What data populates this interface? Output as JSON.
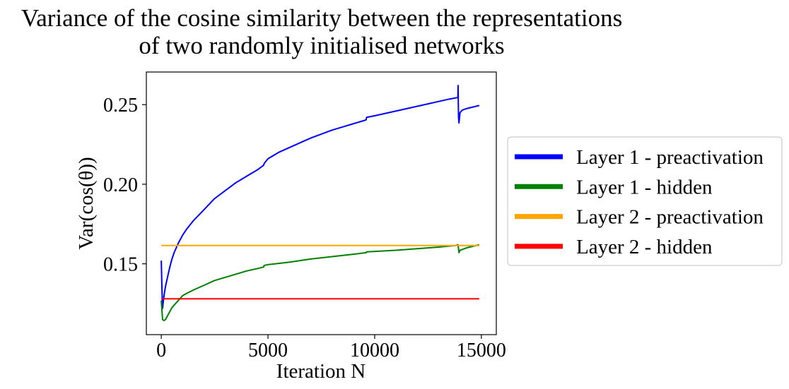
{
  "chart_data": {
    "type": "line",
    "title": [
      "Variance of the cosine similarity between the representations",
      "of  two randomly initialised networks"
    ],
    "xlabel": "Iteration N",
    "ylabel": "Var(cos(θ))",
    "xlim": [
      -700,
      15700
    ],
    "ylim": [
      0.1055,
      0.2705
    ],
    "xticks": [
      0,
      5000,
      10000,
      15000
    ],
    "yticks": [
      0.15,
      0.2,
      0.25
    ],
    "grid": false,
    "legend_position": "outside-right",
    "series": [
      {
        "name": "Layer 1 - preactivation",
        "color": "#0000ff",
        "x": [
          0,
          30,
          60,
          100,
          150,
          200,
          300,
          400,
          500,
          600,
          800,
          1000,
          1200,
          1500,
          2000,
          2500,
          3000,
          3500,
          4000,
          4500,
          4800,
          4820,
          5000,
          5500,
          6000,
          6500,
          7000,
          7500,
          8000,
          8500,
          9000,
          9500,
          9600,
          9620,
          10000,
          10500,
          11000,
          11500,
          12000,
          12500,
          13000,
          13500,
          13900,
          13910,
          13920,
          13930,
          13950,
          14000,
          14100,
          14300,
          14600,
          14900
        ],
        "y": [
          0.152,
          0.135,
          0.122,
          0.127,
          0.132,
          0.136,
          0.142,
          0.148,
          0.153,
          0.157,
          0.163,
          0.168,
          0.172,
          0.177,
          0.184,
          0.191,
          0.196,
          0.201,
          0.205,
          0.209,
          0.212,
          0.213,
          0.216,
          0.22,
          0.223,
          0.226,
          0.229,
          0.2315,
          0.234,
          0.236,
          0.238,
          0.24,
          0.2405,
          0.242,
          0.243,
          0.2445,
          0.246,
          0.2475,
          0.249,
          0.2505,
          0.252,
          0.2535,
          0.2545,
          0.262,
          0.2505,
          0.242,
          0.2385,
          0.245,
          0.2465,
          0.2475,
          0.2485,
          0.2495
        ]
      },
      {
        "name": "Layer 1 - hidden",
        "color": "#008000",
        "x": [
          0,
          30,
          60,
          100,
          150,
          200,
          300,
          400,
          500,
          600,
          800,
          1000,
          1200,
          1500,
          2000,
          2500,
          3000,
          3500,
          4000,
          4500,
          4800,
          4820,
          5000,
          6000,
          7000,
          8000,
          9000,
          9600,
          9620,
          10000,
          11000,
          12000,
          13000,
          13800,
          13900,
          13920,
          13950,
          14000,
          14100,
          14300,
          14600,
          14900
        ],
        "y": [
          0.127,
          0.121,
          0.115,
          0.1145,
          0.1145,
          0.115,
          0.1175,
          0.12,
          0.1225,
          0.124,
          0.127,
          0.13,
          0.1315,
          0.1335,
          0.1365,
          0.1395,
          0.1415,
          0.1435,
          0.1455,
          0.147,
          0.148,
          0.149,
          0.1495,
          0.151,
          0.153,
          0.1545,
          0.156,
          0.157,
          0.1575,
          0.1578,
          0.1585,
          0.1595,
          0.1605,
          0.1615,
          0.162,
          0.1605,
          0.157,
          0.1585,
          0.159,
          0.16,
          0.161,
          0.162
        ]
      },
      {
        "name": "Layer 2 - preactivation",
        "color": "#ffa500",
        "x": [
          0,
          14900
        ],
        "y": [
          0.1615,
          0.1615
        ]
      },
      {
        "name": "Layer 2 - hidden",
        "color": "#ff0000",
        "x": [
          0,
          14900
        ],
        "y": [
          0.128,
          0.128
        ]
      }
    ]
  }
}
